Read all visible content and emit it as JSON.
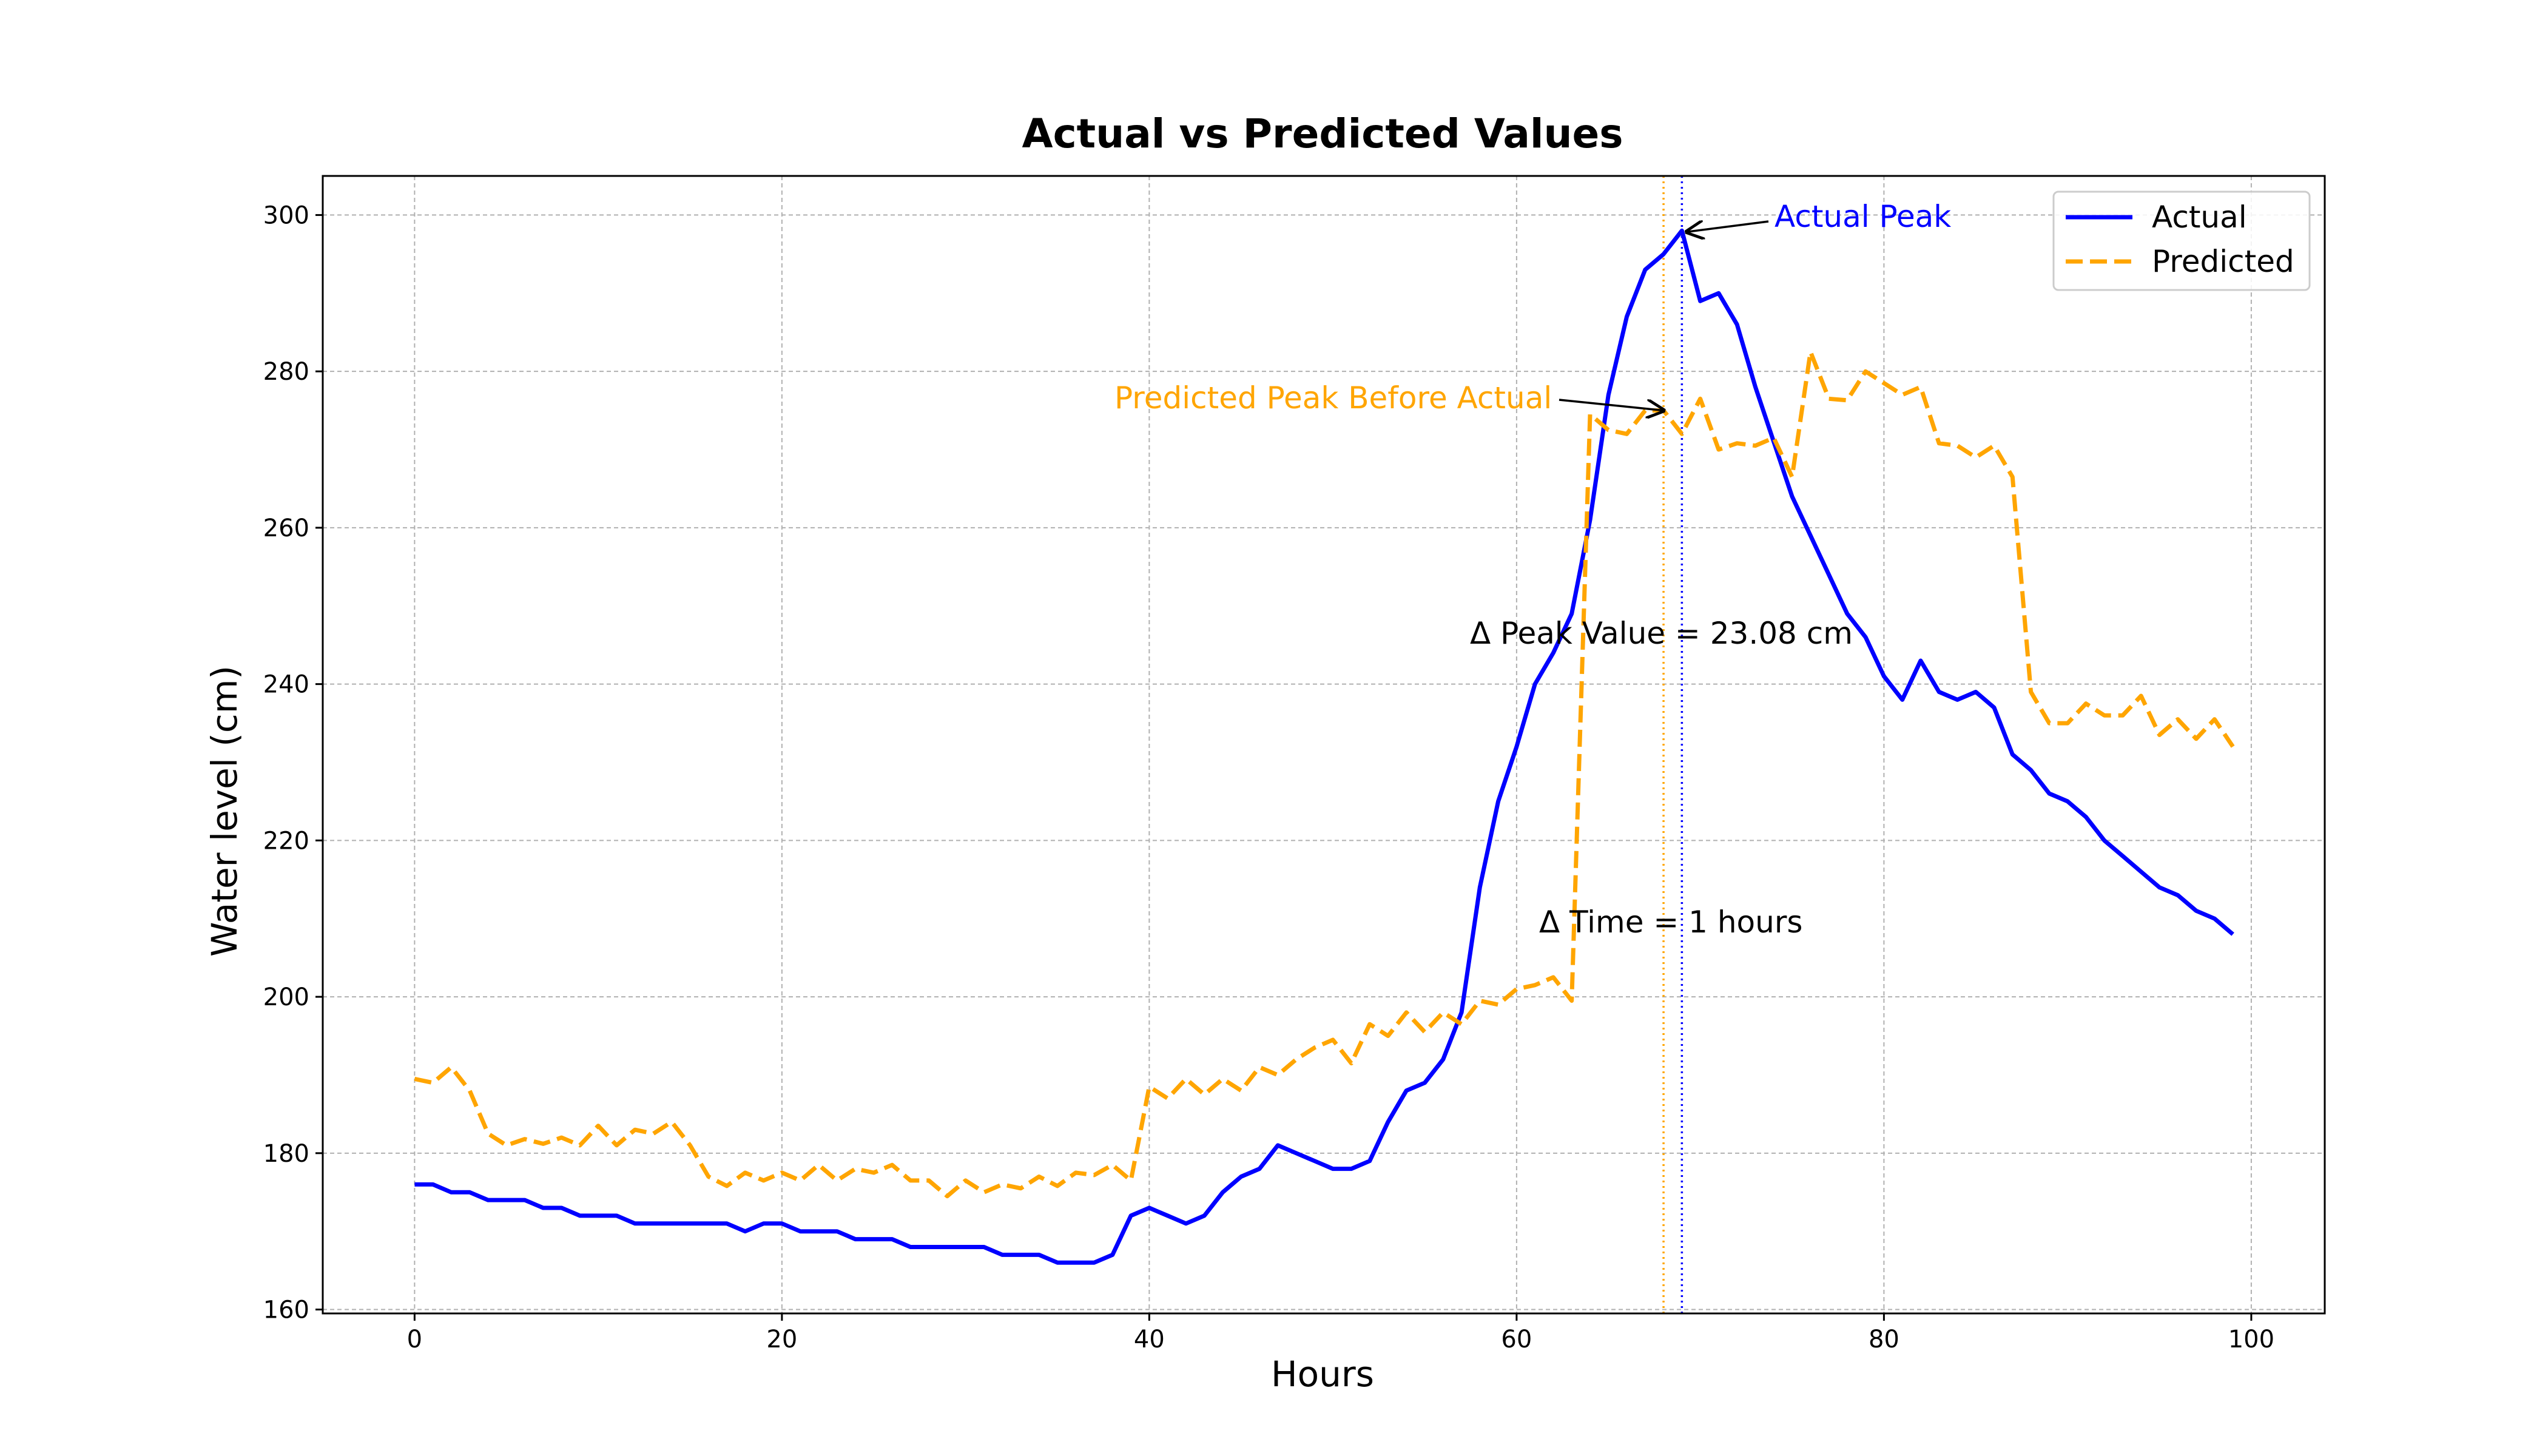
{
  "chart_data": {
    "type": "line",
    "title": "Actual vs Predicted Values",
    "xlabel": "Hours",
    "ylabel": "Water level (cm)",
    "xlim": [
      -5,
      104
    ],
    "ylim": [
      159.5,
      305
    ],
    "xticks": [
      0,
      20,
      40,
      60,
      80,
      100
    ],
    "yticks": [
      160,
      180,
      200,
      220,
      240,
      260,
      280,
      300
    ],
    "grid": true,
    "legend_position": "top-right",
    "x": [
      0,
      1,
      2,
      3,
      4,
      5,
      6,
      7,
      8,
      9,
      10,
      11,
      12,
      13,
      14,
      15,
      16,
      17,
      18,
      19,
      20,
      21,
      22,
      23,
      24,
      25,
      26,
      27,
      28,
      29,
      30,
      31,
      32,
      33,
      34,
      35,
      36,
      37,
      38,
      39,
      40,
      41,
      42,
      43,
      44,
      45,
      46,
      47,
      48,
      49,
      50,
      51,
      52,
      53,
      54,
      55,
      56,
      57,
      58,
      59,
      60,
      61,
      62,
      63,
      64,
      65,
      66,
      67,
      68,
      69,
      70,
      71,
      72,
      73,
      74,
      75,
      76,
      77,
      78,
      79,
      80,
      81,
      82,
      83,
      84,
      85,
      86,
      87,
      88,
      89,
      90,
      91,
      92,
      93,
      94,
      95,
      96,
      97,
      98,
      99
    ],
    "series": [
      {
        "name": "Actual",
        "color": "#0000ff",
        "style": "solid",
        "values": [
          176,
          176,
          175,
          175,
          174,
          174,
          174,
          173,
          173,
          172,
          172,
          172,
          171,
          171,
          171,
          171,
          171,
          171,
          170,
          171,
          171,
          170,
          170,
          170,
          169,
          169,
          169,
          168,
          168,
          168,
          168,
          168,
          167,
          167,
          167,
          166,
          166,
          166,
          167,
          172,
          173,
          172,
          171,
          172,
          175,
          177,
          178,
          181,
          180,
          179,
          178,
          178,
          179,
          184,
          188,
          189,
          192,
          198,
          214,
          225,
          232,
          240,
          244,
          249,
          261,
          277,
          287,
          293,
          295,
          298,
          289,
          290,
          286,
          278,
          271,
          264,
          259,
          254,
          249,
          246,
          241,
          238,
          243,
          239,
          238,
          239,
          237,
          231,
          229,
          226,
          225,
          223,
          220,
          218,
          216,
          214,
          213,
          211,
          210,
          208
        ]
      },
      {
        "name": "Predicted",
        "color": "#ffa500",
        "style": "dashed",
        "values": [
          189.5,
          189,
          191,
          188,
          182.5,
          181,
          181.8,
          181.2,
          182,
          181,
          183.5,
          181,
          183,
          182.5,
          184,
          181,
          177,
          175.8,
          177.5,
          176.5,
          177.5,
          176.5,
          178.5,
          176.5,
          178,
          177.5,
          178.5,
          176.5,
          176.5,
          174.5,
          176.5,
          175,
          176,
          175.5,
          177,
          175.8,
          177.5,
          177.2,
          178.5,
          176.5,
          188.5,
          187,
          189.5,
          187.5,
          189.5,
          188,
          191,
          190,
          192,
          193.5,
          194.5,
          191.5,
          196.5,
          195,
          198,
          195.5,
          198,
          196.5,
          199.5,
          199,
          201,
          201.5,
          202.5,
          199.5,
          274.5,
          272.5,
          272,
          275,
          275,
          272,
          276.5,
          270,
          270.8,
          270.5,
          271.5,
          266.5,
          282.5,
          276.5,
          276.3,
          280,
          278.5,
          277,
          278,
          270.8,
          270.5,
          269,
          270.5,
          266.5,
          239,
          235,
          235,
          237.5,
          236,
          236,
          238.5,
          233.5,
          235.5,
          233,
          235.5,
          232
        ]
      }
    ],
    "annotations": {
      "actual_peak": {
        "text": "Actual Peak",
        "x": 69,
        "y": 298,
        "color": "#0000ff"
      },
      "predicted_peak": {
        "text": "Predicted Peak Before Actual",
        "x": 68,
        "y": 275,
        "color": "#ffa500"
      },
      "delta_peak": {
        "text": "Δ Peak Value = 23.08 cm"
      },
      "delta_time": {
        "text": "Δ Time = 1 hours"
      },
      "vline_actual": {
        "x": 69,
        "color": "#0000ff"
      },
      "vline_predicted": {
        "x": 68,
        "color": "#ffa500"
      }
    }
  }
}
